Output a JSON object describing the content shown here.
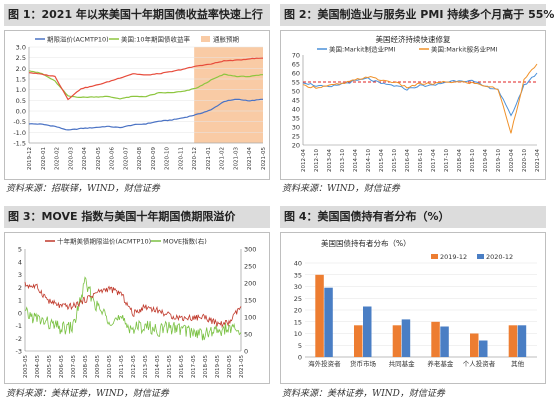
{
  "panels": [
    {
      "title": "图 1：2021 年以来美国十年期国债收益率快速上行",
      "source": "资料来源：招联铎，WIND，财信证券"
    },
    {
      "title": "图 2：美国制造业与服务业 PMI 持续多个月高于 55%",
      "source": "资料来源：WIND，财信证券"
    },
    {
      "title": "图 3：MOVE 指数与美国十年期国债期限溢价",
      "source": "资料来源：美林证券，WIND，财信证券"
    },
    {
      "title": "图 4：美国国债持有者分布（%）",
      "source": "资料来源：美林证券，WIND，财信证券"
    }
  ],
  "chart_data": [
    {
      "type": "line",
      "title": "",
      "series": [
        {
          "name": "期限溢价(ACMTP10)",
          "color": "#4a72c4",
          "x": [
            "2019-12",
            "2020-01",
            "2020-02",
            "2020-03",
            "2020-04",
            "2020-05",
            "2020-06",
            "2020-07",
            "2020-08",
            "2020-09",
            "2020-10",
            "2020-11",
            "2020-12",
            "2021-01",
            "2021-02",
            "2021-03",
            "2021-04",
            "2021-05",
            "2021-06"
          ],
          "values": [
            -0.6,
            -0.62,
            -0.72,
            -0.9,
            -0.82,
            -0.78,
            -0.72,
            -0.78,
            -0.65,
            -0.6,
            -0.48,
            -0.42,
            -0.3,
            -0.15,
            0.05,
            0.45,
            0.55,
            0.48,
            0.55
          ]
        },
        {
          "name": "美国:10年期国债收益率",
          "color": "#8dc63f",
          "x": [
            "2019-12",
            "2020-01",
            "2020-02",
            "2020-03",
            "2020-04",
            "2020-05",
            "2020-06",
            "2020-07",
            "2020-08",
            "2020-09",
            "2020-10",
            "2020-11",
            "2020-12",
            "2021-01",
            "2021-02",
            "2021-03",
            "2021-04",
            "2021-05",
            "2021-06"
          ],
          "values": [
            1.9,
            1.75,
            1.4,
            0.7,
            0.64,
            0.66,
            0.68,
            0.58,
            0.68,
            0.68,
            0.85,
            0.86,
            0.93,
            1.1,
            1.45,
            1.72,
            1.62,
            1.62,
            1.7
          ]
        },
        {
          "name": "通胀预期",
          "color": "#e74c3c",
          "x": [
            "2019-12",
            "2020-01",
            "2020-02",
            "2020-03",
            "2020-04",
            "2020-05",
            "2020-06",
            "2020-07",
            "2020-08",
            "2020-09",
            "2020-10",
            "2020-11",
            "2020-12",
            "2021-01",
            "2021-02",
            "2021-03",
            "2021-04",
            "2021-05",
            "2021-06"
          ],
          "values": [
            1.8,
            1.72,
            1.62,
            0.55,
            1.05,
            1.18,
            1.35,
            1.55,
            1.75,
            1.68,
            1.75,
            1.85,
            1.98,
            2.12,
            2.2,
            2.35,
            2.38,
            2.45,
            2.48
          ]
        }
      ],
      "ylim": [
        -1.5,
        3.0
      ],
      "yticks": [
        "-1.5",
        "-1.0",
        "-0.5",
        "0.0",
        "0.5",
        "1.0",
        "1.5",
        "2.0",
        "2.5",
        "3.0"
      ],
      "xticks": [
        "2019-12",
        "2020-01",
        "2020-02",
        "2020-03",
        "2020-04",
        "2020-05",
        "2020-06",
        "2020-07",
        "2020-08",
        "2020-09",
        "2020-10",
        "2020-11",
        "2020-12",
        "2021-01",
        "2021-02",
        "2021-03",
        "2021-04",
        "2021-05"
      ],
      "shade_from": "2020-12",
      "shade_color": "#f9cba5"
    },
    {
      "type": "line",
      "title": "美国经济持续快速修复",
      "series": [
        {
          "name": "美国:Markit制造业PMI",
          "color": "#4a90d9",
          "x": [
            "2012-04",
            "2012-10",
            "2013-04",
            "2013-10",
            "2014-04",
            "2014-10",
            "2015-04",
            "2015-10",
            "2016-04",
            "2016-10",
            "2017-04",
            "2017-10",
            "2018-04",
            "2018-10",
            "2019-04",
            "2019-10",
            "2020-04",
            "2020-10",
            "2021-04"
          ],
          "values": [
            55,
            53,
            52,
            54,
            55.5,
            57,
            54,
            53,
            51,
            53,
            53,
            55,
            56,
            55.5,
            52.5,
            51,
            36,
            53,
            60
          ]
        },
        {
          "name": "美国:Markit服务业PMI",
          "color": "#f0922b",
          "x": [
            "2012-04",
            "2012-10",
            "2013-04",
            "2013-10",
            "2014-04",
            "2014-10",
            "2015-04",
            "2015-10",
            "2016-04",
            "2016-10",
            "2017-04",
            "2017-10",
            "2018-04",
            "2018-10",
            "2019-04",
            "2019-10",
            "2020-04",
            "2020-10",
            "2021-04"
          ],
          "values": [
            53,
            52,
            53,
            54,
            56,
            58,
            56,
            55,
            52,
            54,
            54,
            55,
            55,
            54.5,
            53,
            51,
            27,
            56,
            65
          ]
        }
      ],
      "reference_line": 55,
      "reference_color": "#e02020",
      "ylim": [
        20,
        70
      ],
      "yticks": [
        "20",
        "25",
        "30",
        "35",
        "40",
        "45",
        "50",
        "55",
        "60",
        "65",
        "70"
      ],
      "xticks": [
        "2012-04",
        "2012-10",
        "2013-04",
        "2013-10",
        "2014-04",
        "2014-10",
        "2015-04",
        "2015-10",
        "2016-04",
        "2016-10",
        "2017-04",
        "2017-10",
        "2018-04",
        "2018-10",
        "2019-04",
        "2019-10",
        "2020-04",
        "2020-10",
        "2021-04"
      ]
    },
    {
      "type": "line",
      "title": "",
      "series": [
        {
          "name": "十年期美债期限溢价(ACMTP10)",
          "color": "#c0392b",
          "axis": "left",
          "x": [
            "2003-05",
            "2004-05",
            "2005-05",
            "2006-05",
            "2007-05",
            "2008-05",
            "2009-05",
            "2010-05",
            "2011-05",
            "2012-05",
            "2013-05",
            "2014-05",
            "2015-05",
            "2016-05",
            "2017-05",
            "2018-05",
            "2019-05",
            "2020-05",
            "2021-05"
          ],
          "values": [
            2.2,
            2.0,
            0.9,
            0.5,
            0.5,
            1.0,
            1.6,
            1.9,
            1.5,
            -0.1,
            0.5,
            0.2,
            -0.2,
            -0.4,
            -0.4,
            -0.3,
            -0.9,
            -0.8,
            0.5
          ]
        },
        {
          "name": "MOVE指数(右)",
          "color": "#7ac143",
          "axis": "right",
          "x": [
            "2003-05",
            "2004-05",
            "2005-05",
            "2006-05",
            "2007-05",
            "2008-05",
            "2009-05",
            "2010-05",
            "2011-05",
            "2012-05",
            "2013-05",
            "2014-05",
            "2015-05",
            "2016-05",
            "2017-05",
            "2018-05",
            "2019-05",
            "2020-05",
            "2021-05"
          ],
          "values": [
            110,
            95,
            80,
            65,
            70,
            200,
            130,
            95,
            90,
            65,
            75,
            60,
            70,
            65,
            55,
            50,
            60,
            65,
            55
          ]
        }
      ],
      "ylim_left": [
        -3,
        5
      ],
      "ylim_right": [
        0,
        300
      ],
      "yticks_left": [
        "-3",
        "-2",
        "-1",
        "0",
        "1",
        "2",
        "3",
        "4",
        "5"
      ],
      "yticks_right": [
        "0",
        "50",
        "100",
        "150",
        "200",
        "250",
        "300"
      ],
      "xticks": [
        "2003-05",
        "2004-05",
        "2005-05",
        "2006-05",
        "2007-05",
        "2008-05",
        "2009-05",
        "2010-05",
        "2011-05",
        "2012-05",
        "2013-05",
        "2014-05",
        "2015-05",
        "2016-05",
        "2017-05",
        "2018-05",
        "2019-05",
        "2020-05",
        "2021-05"
      ]
    },
    {
      "type": "bar",
      "title": "美国国债持有者分布（%）",
      "categories": [
        "海外投资者",
        "货币市场",
        "共同基金",
        "养老基金",
        "个人投资者",
        "其他"
      ],
      "series": [
        {
          "name": "2019-12",
          "color": "#ed7d31",
          "values": [
            35.0,
            13.5,
            13.5,
            15.0,
            10.0,
            13.5
          ]
        },
        {
          "name": "2020-12",
          "color": "#4a7ec4",
          "values": [
            29.5,
            21.5,
            16.0,
            13.0,
            7.0,
            13.5
          ]
        }
      ],
      "ylim": [
        0,
        40
      ],
      "yticks": [
        "0",
        "5",
        "10",
        "15",
        "20",
        "25",
        "30",
        "35",
        "40"
      ]
    }
  ]
}
